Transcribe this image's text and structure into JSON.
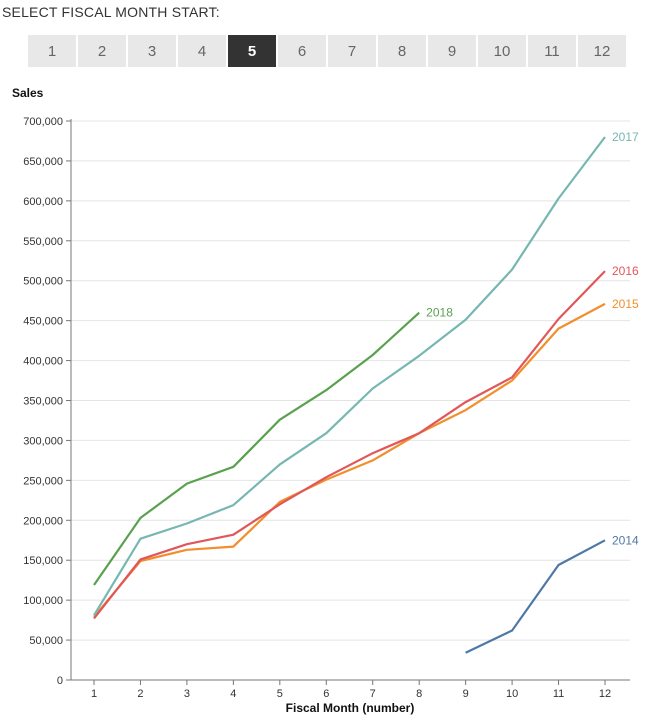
{
  "selector": {
    "title": "SELECT FISCAL MONTH START:",
    "selected": "5",
    "months": [
      "1",
      "2",
      "3",
      "4",
      "5",
      "6",
      "7",
      "8",
      "9",
      "10",
      "11",
      "12"
    ]
  },
  "chart_data": {
    "type": "line",
    "title": "",
    "xlabel": "Fiscal Month (number)",
    "ylabel": "Sales",
    "x": [
      1,
      2,
      3,
      4,
      5,
      6,
      7,
      8,
      9,
      10,
      11,
      12
    ],
    "xlim": [
      1,
      12
    ],
    "ylim": [
      0,
      700000
    ],
    "y_ticks": [
      0,
      50000,
      100000,
      150000,
      200000,
      250000,
      300000,
      350000,
      400000,
      450000,
      500000,
      550000,
      600000,
      650000,
      700000
    ],
    "y_tick_labels": [
      "0",
      "50,000",
      "100,000",
      "150,000",
      "200,000",
      "250,000",
      "300,000",
      "350,000",
      "400,000",
      "450,000",
      "500,000",
      "550,000",
      "600,000",
      "650,000",
      "700,000"
    ],
    "grid": true,
    "legend": "inline-labels",
    "series": [
      {
        "name": "2014",
        "color": "#4e79a7",
        "points": [
          [
            9,
            34000
          ],
          [
            10,
            62000
          ],
          [
            11,
            144000
          ],
          [
            12,
            175000
          ]
        ]
      },
      {
        "name": "2015",
        "color": "#f28e2b",
        "points": [
          [
            1,
            79000
          ],
          [
            2,
            149000
          ],
          [
            3,
            163000
          ],
          [
            4,
            167000
          ],
          [
            5,
            223000
          ],
          [
            6,
            251000
          ],
          [
            7,
            275000
          ],
          [
            8,
            309000
          ],
          [
            9,
            338000
          ],
          [
            10,
            375000
          ],
          [
            11,
            440000
          ],
          [
            12,
            471000
          ]
        ]
      },
      {
        "name": "2016",
        "color": "#e15759",
        "points": [
          [
            1,
            77000
          ],
          [
            2,
            151000
          ],
          [
            3,
            170000
          ],
          [
            4,
            182000
          ],
          [
            5,
            220000
          ],
          [
            6,
            254000
          ],
          [
            7,
            284000
          ],
          [
            8,
            309000
          ],
          [
            9,
            348000
          ],
          [
            10,
            379000
          ],
          [
            11,
            452000
          ],
          [
            12,
            512000
          ]
        ]
      },
      {
        "name": "2017",
        "color": "#76b7b2",
        "points": [
          [
            1,
            81000
          ],
          [
            2,
            177000
          ],
          [
            3,
            196000
          ],
          [
            4,
            219000
          ],
          [
            5,
            270000
          ],
          [
            6,
            309000
          ],
          [
            7,
            365000
          ],
          [
            8,
            406000
          ],
          [
            9,
            451000
          ],
          [
            10,
            514000
          ],
          [
            11,
            603000
          ],
          [
            12,
            680000
          ]
        ]
      },
      {
        "name": "2018",
        "color": "#59a14f",
        "points": [
          [
            1,
            119000
          ],
          [
            2,
            203000
          ],
          [
            3,
            246000
          ],
          [
            4,
            267000
          ],
          [
            5,
            326000
          ],
          [
            6,
            363000
          ],
          [
            7,
            407000
          ],
          [
            8,
            460000
          ]
        ]
      }
    ]
  }
}
